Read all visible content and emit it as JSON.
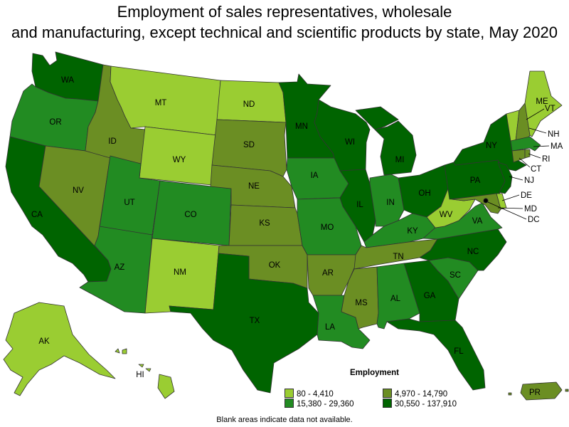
{
  "title": {
    "line1": "Employment of sales representatives, wholesale",
    "line2": "and manufacturing, except technical and scientific products by state, May 2020"
  },
  "legend": {
    "title": "Employment",
    "bins": [
      {
        "label": "80 - 4,410",
        "color": "#9acd32"
      },
      {
        "label": "4,970 - 14,790",
        "color": "#6b8e23"
      },
      {
        "label": "15,380 - 29,360",
        "color": "#228b22"
      },
      {
        "label": "30,550 - 137,910",
        "color": "#006400"
      }
    ]
  },
  "note": "Blank areas indicate data not available.",
  "states": {
    "WA": 3,
    "OR": 2,
    "CA": 3,
    "NV": 1,
    "ID": 1,
    "MT": 0,
    "WY": 0,
    "UT": 2,
    "AZ": 2,
    "CO": 2,
    "NM": 0,
    "ND": 0,
    "SD": 1,
    "NE": 1,
    "KS": 1,
    "OK": 1,
    "TX": 3,
    "MN": 3,
    "IA": 2,
    "MO": 2,
    "AR": 1,
    "LA": 2,
    "WI": 3,
    "IL": 3,
    "MI": 3,
    "IN": 2,
    "OH": 3,
    "KY": 2,
    "TN": 1,
    "MS": 1,
    "AL": 2,
    "GA": 3,
    "FL": 3,
    "SC": 2,
    "NC": 3,
    "VA": 2,
    "WV": 0,
    "PA": 3,
    "NY": 3,
    "VT": 0,
    "NH": 1,
    "ME": 0,
    "MA": 2,
    "RI": 1,
    "CT": 1,
    "NJ": 3,
    "DE": 0,
    "MD": 1,
    "DC": 0,
    "AK": 0,
    "HI": 0,
    "PR": 1
  },
  "state_labels": {
    "WA": "WA",
    "OR": "OR",
    "CA": "CA",
    "NV": "NV",
    "ID": "ID",
    "MT": "MT",
    "WY": "WY",
    "UT": "UT",
    "AZ": "AZ",
    "CO": "CO",
    "NM": "NM",
    "ND": "ND",
    "SD": "SD",
    "NE": "NE",
    "KS": "KS",
    "OK": "OK",
    "TX": "TX",
    "MN": "MN",
    "IA": "IA",
    "MO": "MO",
    "AR": "AR",
    "LA": "LA",
    "WI": "WI",
    "IL": "IL",
    "MI": "MI",
    "IN": "IN",
    "OH": "OH",
    "KY": "KY",
    "TN": "TN",
    "MS": "MS",
    "AL": "AL",
    "GA": "GA",
    "FL": "FL",
    "SC": "SC",
    "NC": "NC",
    "VA": "VA",
    "WV": "WV",
    "PA": "PA",
    "NY": "NY",
    "VT": "VT",
    "NH": "NH",
    "ME": "ME",
    "MA": "MA",
    "RI": "RI",
    "CT": "CT",
    "NJ": "NJ",
    "DE": "DE",
    "MD": "MD",
    "DC": "DC",
    "AK": "AK",
    "HI": "HI",
    "PR": "PR"
  }
}
